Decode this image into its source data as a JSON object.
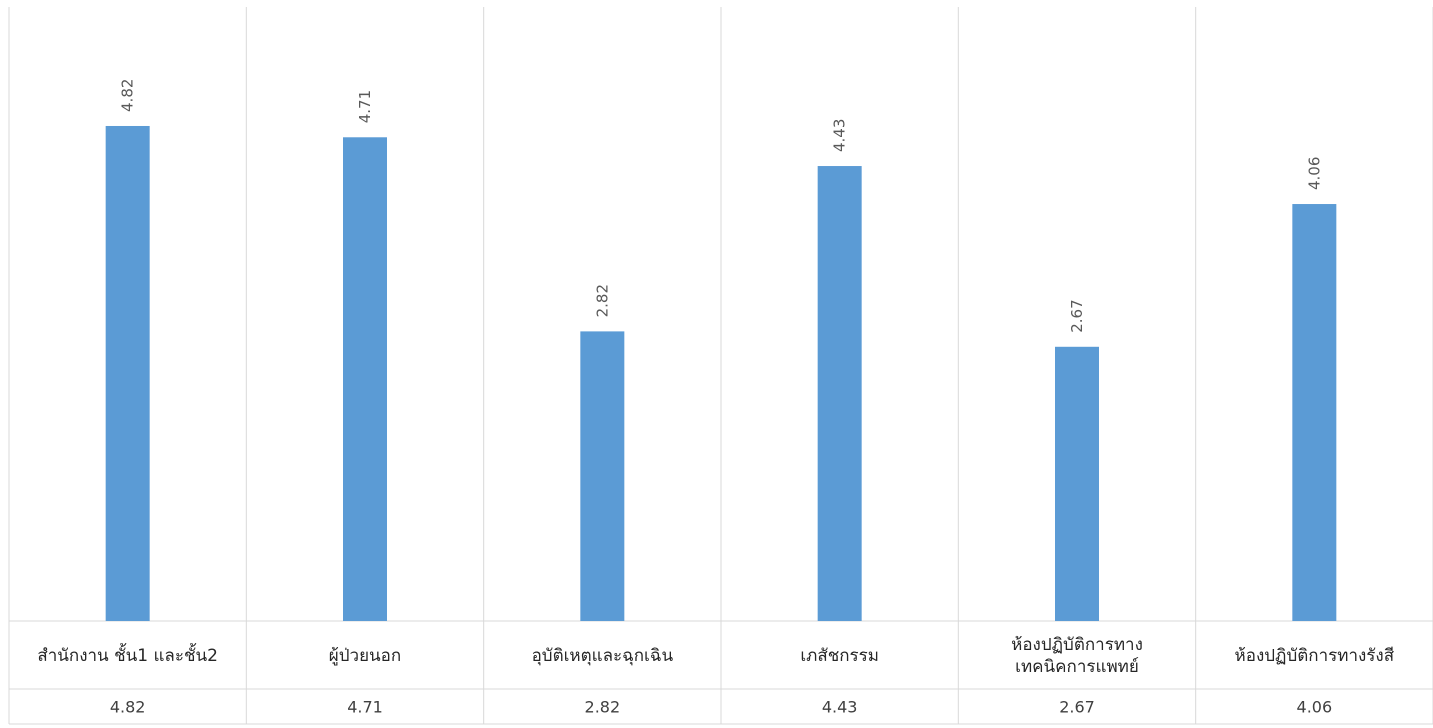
{
  "chart_data": {
    "type": "bar",
    "categories": [
      [
        "สำนักงาน ชั้น1 และชั้น2"
      ],
      [
        "ผู้ป่วยนอก"
      ],
      [
        "อุบัติเหตุและฉุกเฉิน"
      ],
      [
        "เภสัชกรรม"
      ],
      [
        "ห้องปฏิบัติการทาง",
        "เทคนิคการแพทย์"
      ],
      [
        "ห้องปฏิบัติการทางรังสี"
      ]
    ],
    "values": [
      4.82,
      4.71,
      2.82,
      4.43,
      2.67,
      4.06
    ],
    "value_labels": [
      "4.82",
      "4.71",
      "2.82",
      "4.43",
      "2.67",
      "4.06"
    ],
    "ylim": [
      0,
      6
    ],
    "bar_color": "#5B9BD5",
    "grid": "vertical",
    "data_table": true,
    "title": "",
    "xlabel": "",
    "ylabel": ""
  }
}
